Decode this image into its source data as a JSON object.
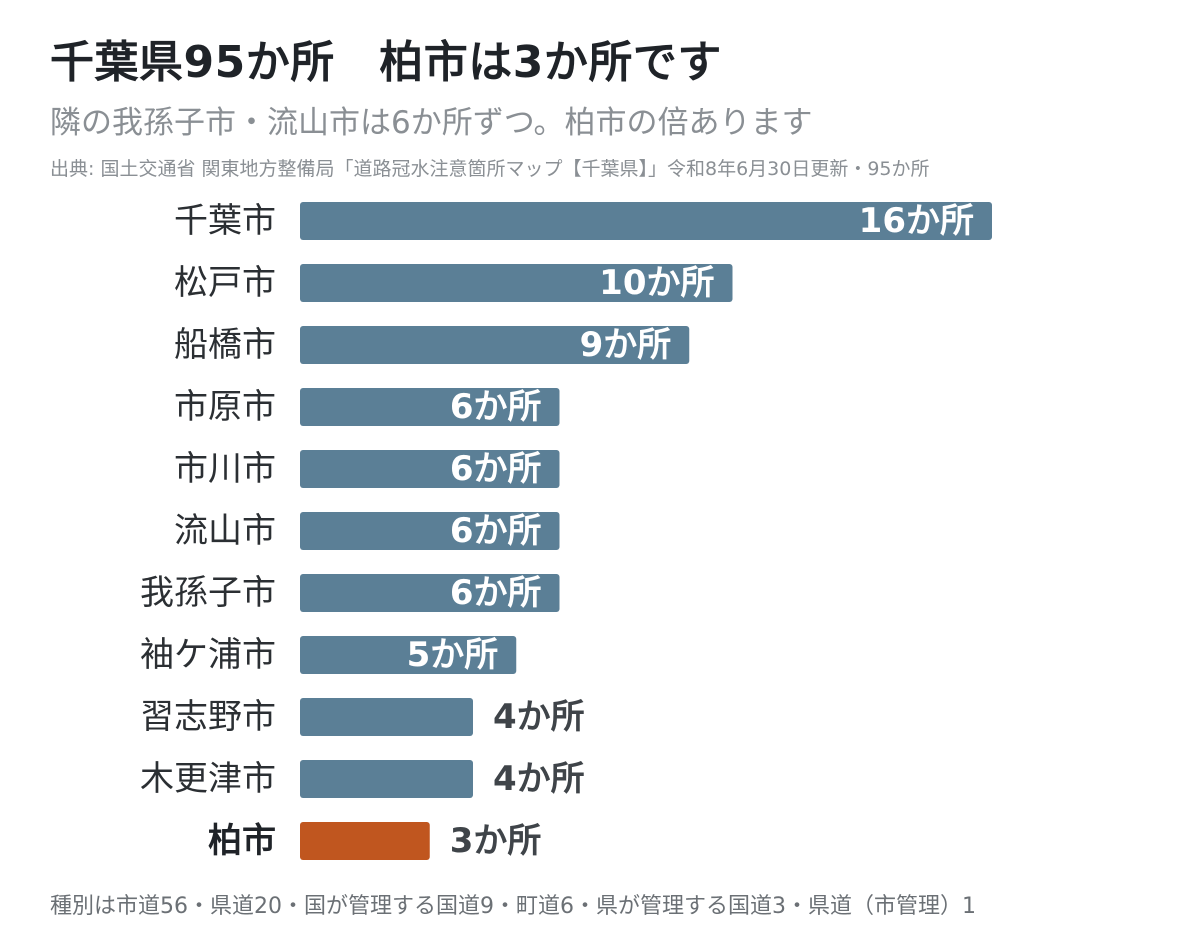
{
  "header": {
    "title": "千葉県95か所　柏市は3か所です",
    "subtitle": "隣の我孫子市・流山市は6か所ずつ。柏市の倍あります",
    "source": "出典: 国土交通省 関東地方整備局「道路冠水注意箇所マップ【千葉県】」令和8年6月30日更新・95か所"
  },
  "footer": {
    "note": "種別は市道56・県道20・国が管理する国道9・町道6・県が管理する国道3・県道（市管理）1"
  },
  "colors": {
    "bar": "#5b7f96",
    "highlight": "#c0561f"
  },
  "chart_data": {
    "type": "bar",
    "orientation": "horizontal",
    "unit_suffix": "か所",
    "categories": [
      "千葉市",
      "松戸市",
      "船橋市",
      "市原市",
      "市川市",
      "流山市",
      "我孫子市",
      "袖ケ浦市",
      "習志野市",
      "木更津市",
      "柏市"
    ],
    "values": [
      16,
      10,
      9,
      6,
      6,
      6,
      6,
      5,
      4,
      4,
      3
    ],
    "labels": [
      "16か所",
      "10か所",
      "9か所",
      "6か所",
      "6か所",
      "6か所",
      "6か所",
      "5か所",
      "4か所",
      "4か所",
      "3か所"
    ],
    "highlight": "柏市",
    "xlim": [
      0,
      16
    ],
    "grid": false,
    "legend": "none"
  }
}
